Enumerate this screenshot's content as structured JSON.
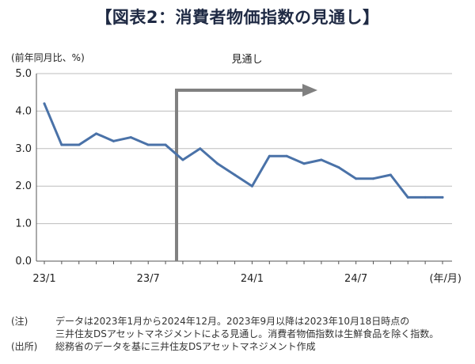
{
  "title": "【図表2：消費者物価指数の見通し】",
  "chart_data": {
    "type": "line",
    "title": "【図表2：消費者物価指数の見通し】",
    "ylabel": "(前年同月比、%)",
    "xlabel": "(年/月)",
    "ylim": [
      0.0,
      5.0
    ],
    "yticks": [
      "0.0",
      "1.0",
      "2.0",
      "3.0",
      "4.0",
      "5.0"
    ],
    "xtick_labels": [
      {
        "index": 0,
        "label": "23/1"
      },
      {
        "index": 6,
        "label": "23/7"
      },
      {
        "index": 12,
        "label": "24/1"
      },
      {
        "index": 18,
        "label": "24/7"
      }
    ],
    "grid": true,
    "series": [
      {
        "values": [
          4.2,
          3.1,
          3.1,
          3.4,
          3.2,
          3.3,
          3.1,
          3.1,
          2.7,
          3.0,
          2.6,
          2.3,
          2.0,
          2.8,
          2.8,
          2.6,
          2.7,
          2.5,
          2.2,
          2.2,
          2.3,
          1.7,
          1.7,
          1.7
        ],
        "color": "#4a72a8"
      }
    ],
    "forecast_marker": {
      "start_index": 8,
      "label": "見通し"
    }
  },
  "notes": [
    {
      "label": "(注)",
      "lines": [
        "データは2023年1月から2024年12月。2023年9月以降は2023年10月18日時点の",
        "三井住友DSアセットマネジメントによる見通し。消費者物価指数は生鮮食品を除く指数。"
      ]
    },
    {
      "label": "(出所)",
      "lines": [
        "総務省のデータを基に三井住友DSアセットマネジメント作成"
      ]
    }
  ]
}
